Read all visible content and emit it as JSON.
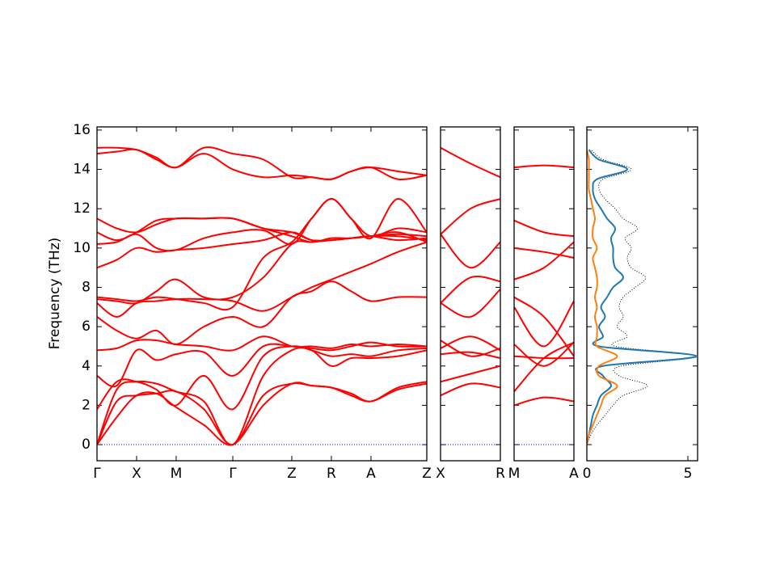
{
  "chart_data": [
    {
      "type": "band",
      "ylabel": "Frequency (THz)",
      "color": "#ff0000",
      "x": [
        0,
        0.5,
        1,
        1.5,
        2,
        2.7,
        3.43,
        4.2,
        4.92,
        5.42,
        5.92,
        6.42,
        6.92,
        7.6,
        8.33
      ],
      "xlim": [
        0,
        8.33
      ],
      "xticks": [
        {
          "value": 0,
          "label": "Γ"
        },
        {
          "value": 1,
          "label": "X"
        },
        {
          "value": 2,
          "label": "M"
        },
        {
          "value": 3.43,
          "label": "Γ"
        },
        {
          "value": 4.92,
          "label": "Z"
        },
        {
          "value": 5.92,
          "label": "R"
        },
        {
          "value": 6.92,
          "label": "A"
        },
        {
          "value": 8.33,
          "label": "Z"
        }
      ],
      "ylim": [
        -0.82,
        16.16
      ],
      "yticks": [
        0,
        2,
        4,
        6,
        8,
        10,
        12,
        14,
        16
      ],
      "hline": {
        "value": 0,
        "color": "#0000ff"
      },
      "series": [
        {
          "values": [
            0,
            1.4,
            2.5,
            2.6,
            1.9,
            1.0,
            0,
            2.0,
            3.1,
            3.0,
            2.9,
            2.5,
            2.2,
            2.8,
            3.1
          ]
        },
        {
          "values": [
            0,
            2.2,
            2.5,
            2.6,
            2.7,
            1.8,
            0,
            2.5,
            3.1,
            3.0,
            2.9,
            2.6,
            2.2,
            2.9,
            3.2
          ]
        },
        {
          "values": [
            0,
            2.8,
            3.2,
            3.1,
            2.7,
            2.2,
            0,
            3.5,
            4.8,
            4.8,
            4.0,
            4.4,
            4.4,
            4.5,
            4.8
          ]
        },
        {
          "values": [
            1.8,
            3.2,
            3.2,
            2.8,
            2.0,
            3.5,
            1.8,
            4.5,
            5.0,
            4.8,
            4.5,
            4.6,
            4.5,
            4.8,
            4.9
          ]
        },
        {
          "values": [
            3.5,
            3.0,
            4.8,
            4.3,
            4.6,
            4.7,
            3.5,
            5.0,
            5.0,
            4.9,
            4.8,
            5.0,
            5.2,
            5.0,
            5.0
          ]
        },
        {
          "values": [
            4.8,
            4.9,
            5.3,
            5.3,
            5.1,
            5.0,
            4.8,
            5.5,
            5.0,
            5.0,
            4.9,
            5.1,
            5.0,
            5.1,
            5.0
          ]
        },
        {
          "values": [
            6.5,
            5.8,
            5.4,
            5.8,
            5.1,
            6.0,
            6.5,
            6.0,
            7.5,
            7.8,
            8.3,
            7.8,
            7.3,
            7.5,
            7.5
          ]
        },
        {
          "values": [
            7.2,
            6.5,
            7.2,
            7.3,
            7.4,
            7.4,
            7.3,
            6.8,
            7.5,
            8.0,
            8.4,
            8.8,
            9.2,
            9.8,
            10.3
          ]
        },
        {
          "values": [
            7.4,
            7.3,
            7.2,
            7.8,
            8.4,
            7.5,
            7.5,
            8.5,
            10.2,
            10.3,
            10.4,
            10.5,
            10.6,
            10.4,
            10.5
          ]
        },
        {
          "values": [
            7.5,
            7.4,
            7.3,
            7.5,
            7.4,
            7.2,
            7.0,
            9.5,
            10.3,
            11.5,
            12.5,
            11.5,
            10.5,
            12.5,
            10.8
          ]
        },
        {
          "values": [
            9.0,
            9.4,
            10.0,
            9.8,
            9.9,
            10.0,
            10.2,
            10.4,
            10.8,
            10.4,
            10.4,
            10.5,
            10.6,
            10.7,
            10.6
          ]
        },
        {
          "values": [
            10.2,
            10.3,
            10.7,
            10.0,
            9.9,
            10.5,
            10.8,
            10.9,
            10.2,
            11.5,
            12.5,
            11.5,
            10.6,
            11.0,
            10.8
          ]
        },
        {
          "values": [
            10.8,
            10.4,
            10.8,
            11.4,
            11.5,
            11.5,
            11.5,
            11.0,
            10.6,
            10.3,
            10.5,
            10.5,
            10.6,
            10.8,
            10.3
          ]
        },
        {
          "values": [
            11.5,
            11.0,
            10.8,
            11.2,
            11.5,
            11.5,
            11.5,
            11.0,
            10.8,
            10.4,
            10.4,
            10.5,
            10.6,
            10.6,
            10.4
          ]
        },
        {
          "values": [
            14.8,
            14.9,
            15.0,
            14.5,
            14.1,
            14.8,
            14.0,
            13.6,
            13.7,
            13.6,
            13.5,
            13.9,
            14.1,
            13.5,
            13.7
          ]
        },
        {
          "values": [
            15.1,
            15.1,
            15.0,
            14.6,
            14.1,
            15.1,
            14.8,
            14.5,
            13.6,
            13.6,
            13.5,
            13.9,
            14.1,
            13.9,
            13.7
          ]
        }
      ]
    },
    {
      "type": "band",
      "color": "#ff0000",
      "x": [
        0,
        0.5,
        1
      ],
      "xlim": [
        0,
        1
      ],
      "xticks": [
        {
          "value": 0,
          "label": "X"
        },
        {
          "value": 1,
          "label": "R"
        }
      ],
      "ylim": [
        -0.82,
        16.16
      ],
      "hline": {
        "value": 0,
        "color": "#0000ff"
      },
      "series": [
        {
          "values": [
            2.5,
            3.1,
            2.9
          ]
        },
        {
          "values": [
            3.2,
            3.6,
            4.0
          ]
        },
        {
          "values": [
            4.6,
            4.7,
            4.4
          ]
        },
        {
          "values": [
            4.9,
            5.5,
            4.8
          ]
        },
        {
          "values": [
            5.3,
            4.5,
            4.9
          ]
        },
        {
          "values": [
            7.2,
            6.5,
            7.9
          ]
        },
        {
          "values": [
            7.2,
            8.5,
            8.3
          ]
        },
        {
          "values": [
            10.7,
            9.0,
            10.3
          ]
        },
        {
          "values": [
            10.7,
            12.0,
            12.5
          ]
        },
        {
          "values": [
            15.1,
            14.3,
            13.6
          ]
        }
      ]
    },
    {
      "type": "band",
      "color": "#ff0000",
      "x": [
        0,
        0.5,
        1
      ],
      "xlim": [
        0,
        1
      ],
      "xticks": [
        {
          "value": 0,
          "label": "M"
        },
        {
          "value": 1,
          "label": "A"
        }
      ],
      "ylim": [
        -0.82,
        16.16
      ],
      "hline": {
        "value": 0,
        "color": "#0000ff"
      },
      "series": [
        {
          "values": [
            2.0,
            2.4,
            2.2
          ]
        },
        {
          "values": [
            2.7,
            4.4,
            5.2
          ]
        },
        {
          "values": [
            4.5,
            4.4,
            4.4
          ]
        },
        {
          "values": [
            5.1,
            4.0,
            5.2
          ]
        },
        {
          "values": [
            7.5,
            6.5,
            4.5
          ]
        },
        {
          "values": [
            7.0,
            5.0,
            7.3
          ]
        },
        {
          "values": [
            8.4,
            9.0,
            10.3
          ]
        },
        {
          "values": [
            10.0,
            9.8,
            9.5
          ]
        },
        {
          "values": [
            11.4,
            10.8,
            10.6
          ]
        },
        {
          "values": [
            14.1,
            14.2,
            14.1
          ]
        }
      ]
    },
    {
      "type": "dos",
      "xlim": [
        0,
        5.48
      ],
      "xticks": [
        0,
        5
      ],
      "ylim": [
        -0.82,
        16.16
      ],
      "y": [
        0,
        0.5,
        1,
        1.5,
        2,
        2.5,
        3,
        3.5,
        4,
        4.5,
        5,
        5.5,
        6,
        6.5,
        7,
        7.5,
        8,
        8.5,
        9,
        9.5,
        10,
        10.5,
        11,
        11.5,
        12,
        12.5,
        13,
        13.5,
        14,
        14.5,
        15
      ],
      "series": [
        {
          "color": "#000000",
          "dash": true,
          "values": [
            0,
            0.2,
            0.5,
            0.9,
            1.3,
            1.8,
            3.0,
            1.6,
            1.7,
            5.5,
            1.4,
            2.0,
            1.5,
            1.8,
            1.6,
            1.8,
            2.4,
            2.9,
            2.2,
            2.0,
            2.2,
            1.9,
            2.5,
            1.8,
            1.4,
            0.9,
            0.6,
            0.8,
            2.2,
            0.8,
            0.2
          ]
        },
        {
          "color": "#1f77b4",
          "values": [
            0,
            0.1,
            0.2,
            0.3,
            0.5,
            0.7,
            1.2,
            0.8,
            0.8,
            5.4,
            0.6,
            0.8,
            0.6,
            0.9,
            0.7,
            1.0,
            1.3,
            1.8,
            1.4,
            1.3,
            1.3,
            1.2,
            1.4,
            1.0,
            0.7,
            0.4,
            0.3,
            0.5,
            2.0,
            0.6,
            0.1
          ]
        },
        {
          "color": "#ff7f0e",
          "values": [
            0,
            0.1,
            0.3,
            0.5,
            0.7,
            0.9,
            1.5,
            0.6,
            0.6,
            1.5,
            0.5,
            0.5,
            0.5,
            0.4,
            0.5,
            0.4,
            0.5,
            0.5,
            0.4,
            0.3,
            0.5,
            0.3,
            0.3,
            0.4,
            0.3,
            0.2,
            0.1,
            0.1,
            0.1,
            0.1,
            0
          ]
        }
      ]
    }
  ]
}
